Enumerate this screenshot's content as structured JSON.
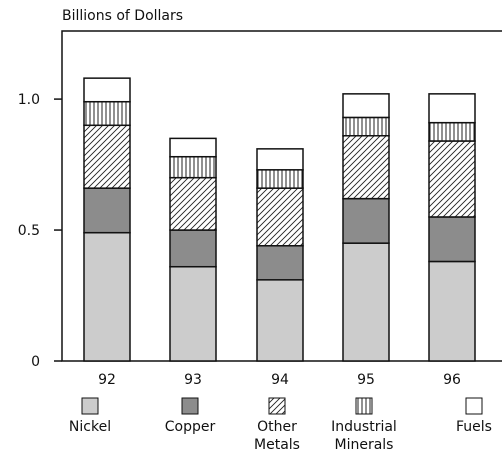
{
  "chart_data": {
    "type": "stacked_bar",
    "ylabel": "Billions of Dollars",
    "categories": [
      "92",
      "93",
      "94",
      "95",
      "96"
    ],
    "series": [
      {
        "name": "Nickel",
        "color": "#cccccc",
        "pattern": "solid",
        "values": [
          0.49,
          0.36,
          0.31,
          0.45,
          0.38
        ]
      },
      {
        "name": "Copper",
        "color": "#8c8c8c",
        "pattern": "solid",
        "values": [
          0.17,
          0.14,
          0.13,
          0.17,
          0.17
        ]
      },
      {
        "name": "Other Metals",
        "color": "#ffffff",
        "pattern": "diagonal",
        "values": [
          0.24,
          0.2,
          0.22,
          0.24,
          0.29
        ]
      },
      {
        "name": "Industrial Minerals",
        "color": "#ffffff",
        "pattern": "vertical",
        "values": [
          0.09,
          0.08,
          0.07,
          0.07,
          0.07
        ]
      },
      {
        "name": "Fuels",
        "color": "#ffffff",
        "pattern": "solid",
        "values": [
          0.09,
          0.07,
          0.08,
          0.09,
          0.11
        ]
      }
    ],
    "ylim": [
      0,
      1.26
    ],
    "yticks": [
      0,
      0.5,
      {
        "value": 1,
        "label": "1.0"
      }
    ],
    "grid": false
  }
}
